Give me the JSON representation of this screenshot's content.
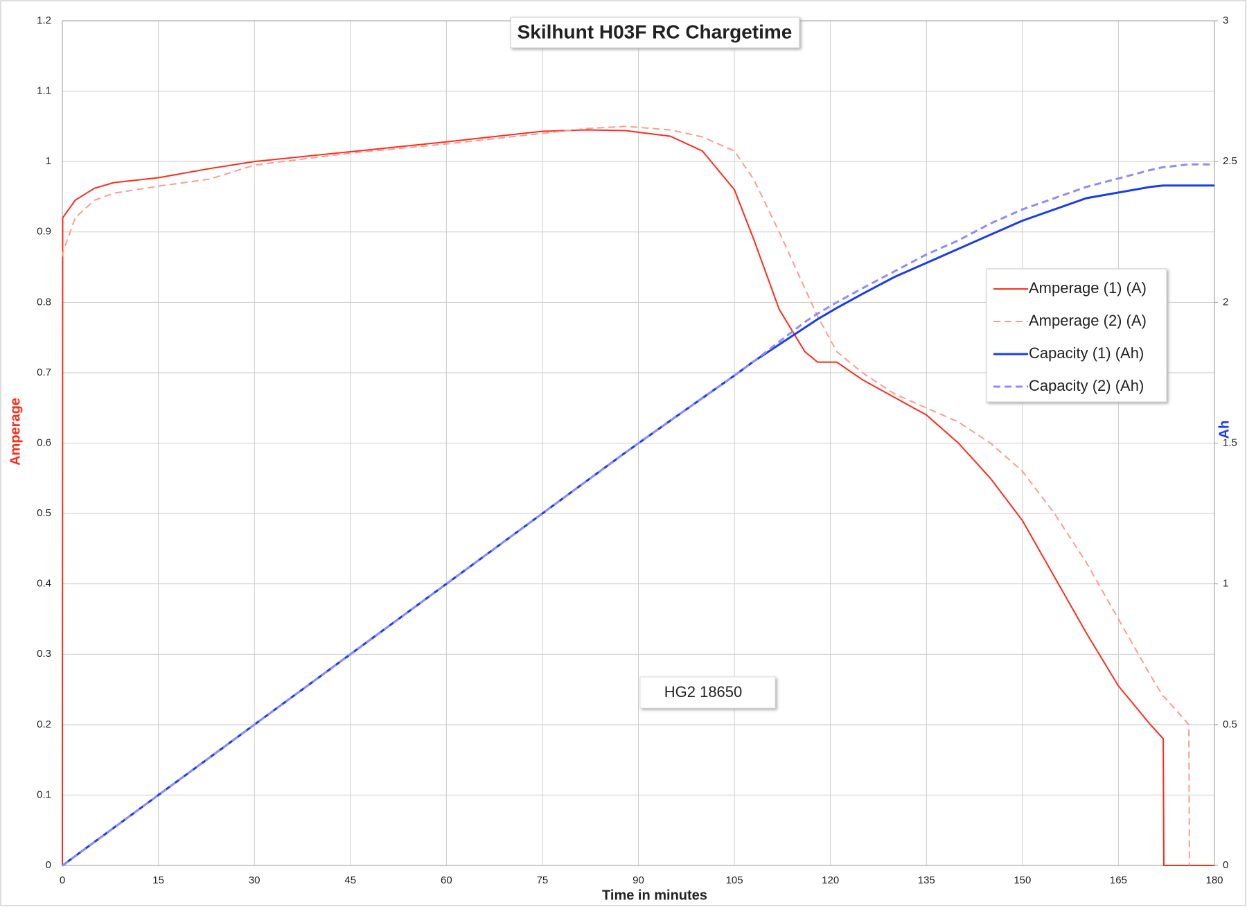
{
  "chart_data": {
    "type": "line",
    "title": "Skilhunt H03F RC Chargetime",
    "annotation": "HG2 18650",
    "x_label": "Time in minutes",
    "y_label": "Amperage",
    "y2_label": "Ah",
    "x": [
      0,
      0.05,
      2,
      5,
      8,
      15,
      23,
      30,
      45,
      60,
      75,
      82,
      88,
      95,
      100,
      105,
      108,
      112,
      116,
      118,
      121,
      125,
      130,
      135,
      140,
      145,
      150,
      155,
      160,
      165,
      170,
      172,
      172.1,
      176,
      176.1,
      180
    ],
    "series": [
      {
        "name": "Amperage (1) (A)",
        "color": "#ff2a1a",
        "dashed": false,
        "values": [
          0,
          0.92,
          0.945,
          0.962,
          0.97,
          0.977,
          0.99,
          1.0,
          1.014,
          1.028,
          1.043,
          1.045,
          1.044,
          1.036,
          1.015,
          0.96,
          0.89,
          0.79,
          0.73,
          0.715,
          0.715,
          0.69,
          0.665,
          0.64,
          0.6,
          0.55,
          0.49,
          0.41,
          0.33,
          0.255,
          0.2,
          0.18,
          0,
          0,
          0,
          0
        ]
      },
      {
        "name": "Amperage (2) (A)",
        "color": "#ff9a90",
        "dashed": true,
        "values": [
          0.865,
          0.87,
          0.92,
          0.945,
          0.955,
          0.965,
          0.975,
          0.995,
          1.012,
          1.025,
          1.04,
          1.047,
          1.05,
          1.045,
          1.035,
          1.015,
          0.975,
          0.9,
          0.82,
          0.78,
          0.73,
          0.7,
          0.67,
          0.65,
          0.63,
          0.6,
          0.56,
          0.5,
          0.43,
          0.35,
          0.27,
          0.24,
          0.24,
          0.2,
          0,
          null
        ]
      },
      {
        "name": "Capacity (1) (Ah)",
        "color": "#1a3cf0",
        "dashed": false,
        "axis": "y2",
        "values": [
          0,
          0,
          0.033,
          0.083,
          0.133,
          0.25,
          0.383,
          0.5,
          0.75,
          1.0,
          1.25,
          1.367,
          1.467,
          1.58,
          1.66,
          1.74,
          1.79,
          1.85,
          1.91,
          1.94,
          1.98,
          2.03,
          2.09,
          2.14,
          2.19,
          2.24,
          2.29,
          2.33,
          2.37,
          2.39,
          2.41,
          2.415,
          2.415,
          2.415,
          2.415,
          2.415
        ]
      },
      {
        "name": "Capacity (2) (Ah)",
        "color": "#8c8cff",
        "dashed": true,
        "axis": "y2",
        "values": [
          0,
          0,
          0.033,
          0.083,
          0.133,
          0.25,
          0.383,
          0.5,
          0.75,
          1.0,
          1.25,
          1.367,
          1.467,
          1.58,
          1.66,
          1.74,
          1.79,
          1.86,
          1.93,
          1.96,
          2.0,
          2.05,
          2.11,
          2.17,
          2.22,
          2.28,
          2.33,
          2.37,
          2.41,
          2.44,
          2.47,
          2.48,
          2.48,
          2.49,
          2.49,
          2.49
        ]
      }
    ],
    "xlim": [
      0,
      180
    ],
    "xticks": [
      0,
      15,
      30,
      45,
      60,
      75,
      90,
      105,
      120,
      135,
      150,
      165,
      180
    ],
    "ylim": [
      0,
      1.2
    ],
    "yticks": [
      0,
      0.1,
      0.2,
      0.3,
      0.4,
      0.5,
      0.6,
      0.7,
      0.8,
      0.9,
      1,
      1.1,
      1.2
    ],
    "y2lim": [
      0,
      3
    ],
    "y2ticks": [
      0,
      0.5,
      1,
      1.5,
      2,
      2.5,
      3
    ],
    "grid": true,
    "legend": "right"
  }
}
